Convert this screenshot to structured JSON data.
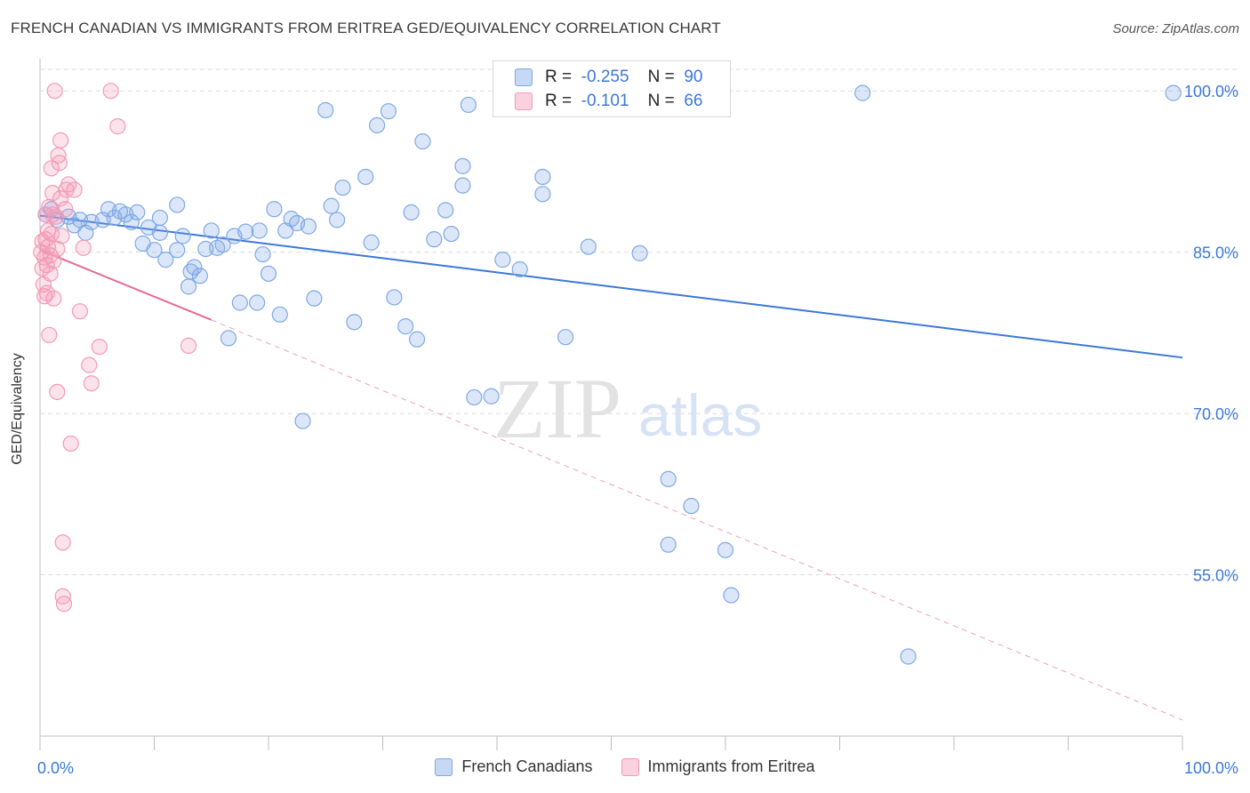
{
  "title": "FRENCH CANADIAN VS IMMIGRANTS FROM ERITREA GED/EQUIVALENCY CORRELATION CHART",
  "source": "Source: ZipAtlas.com",
  "watermark": {
    "zip": "ZIP",
    "atlas": "atlas"
  },
  "legend_top": [
    {
      "r_label": "R =",
      "r_value": "-0.255",
      "n_label": "N =",
      "n_value": "90",
      "color": "#7fa8e6"
    },
    {
      "r_label": "R =",
      "r_value": "-0.101",
      "n_label": "N =",
      "n_value": "66",
      "color": "#f39ab6"
    }
  ],
  "chart_data": {
    "type": "scatter",
    "title": "FRENCH CANADIAN VS IMMIGRANTS FROM ERITREA GED/EQUIVALENCY CORRELATION CHART",
    "xlabel": "",
    "ylabel": "GED/Equivalency",
    "xlim": [
      0,
      100
    ],
    "ylim": [
      40,
      102
    ],
    "x_tick_labels": [
      "0.0%",
      "100.0%"
    ],
    "y_ticks": [
      55,
      70,
      85,
      100
    ],
    "y_tick_labels": [
      "55.0%",
      "70.0%",
      "85.0%",
      "100.0%"
    ],
    "grid": true,
    "legend_placement": "bottom",
    "series": [
      {
        "name": "French Canadians",
        "color": "#7fa8e6",
        "trend": {
          "x": [
            0,
            100
          ],
          "y": [
            88.4,
            75.2
          ],
          "style": "solid"
        },
        "points": [
          [
            0.5,
            88.5
          ],
          [
            1.0,
            89.0
          ],
          [
            1.5,
            88.0
          ],
          [
            2.5,
            88.3
          ],
          [
            3.0,
            87.5
          ],
          [
            3.5,
            88.0
          ],
          [
            4.0,
            86.8
          ],
          [
            4.5,
            87.8
          ],
          [
            5.5,
            88.0
          ],
          [
            6.0,
            89.0
          ],
          [
            6.5,
            88.2
          ],
          [
            7.0,
            88.8
          ],
          [
            7.5,
            88.5
          ],
          [
            8.0,
            87.8
          ],
          [
            8.5,
            88.7
          ],
          [
            9.0,
            85.8
          ],
          [
            9.5,
            87.3
          ],
          [
            10.0,
            85.2
          ],
          [
            10.5,
            88.2
          ],
          [
            10.5,
            86.8
          ],
          [
            11.0,
            84.3
          ],
          [
            12.0,
            85.2
          ],
          [
            12.0,
            89.4
          ],
          [
            12.5,
            86.5
          ],
          [
            13.0,
            81.8
          ],
          [
            13.2,
            83.2
          ],
          [
            13.5,
            83.6
          ],
          [
            14.0,
            82.8
          ],
          [
            14.5,
            85.3
          ],
          [
            15.0,
            87.0
          ],
          [
            15.5,
            85.4
          ],
          [
            16.0,
            85.7
          ],
          [
            16.5,
            77.0
          ],
          [
            17.0,
            86.5
          ],
          [
            17.5,
            80.3
          ],
          [
            18.0,
            86.9
          ],
          [
            19.0,
            80.3
          ],
          [
            19.2,
            87.0
          ],
          [
            19.5,
            84.8
          ],
          [
            20.0,
            83.0
          ],
          [
            20.5,
            89.0
          ],
          [
            21.0,
            79.2
          ],
          [
            21.5,
            87.0
          ],
          [
            22.0,
            88.1
          ],
          [
            22.5,
            87.7
          ],
          [
            23.0,
            69.3
          ],
          [
            23.5,
            87.4
          ],
          [
            24.0,
            80.7
          ],
          [
            25.5,
            89.3
          ],
          [
            26.0,
            88.0
          ],
          [
            25.0,
            98.2
          ],
          [
            26.5,
            91.0
          ],
          [
            27.5,
            78.5
          ],
          [
            28.5,
            92.0
          ],
          [
            29.0,
            85.9
          ],
          [
            29.5,
            96.8
          ],
          [
            30.5,
            98.1
          ],
          [
            31.0,
            80.8
          ],
          [
            32.0,
            78.1
          ],
          [
            32.5,
            88.7
          ],
          [
            33.0,
            76.9
          ],
          [
            33.5,
            95.3
          ],
          [
            34.5,
            86.2
          ],
          [
            35.5,
            88.9
          ],
          [
            36.0,
            86.7
          ],
          [
            37.0,
            93.0
          ],
          [
            37.0,
            91.2
          ],
          [
            37.5,
            98.7
          ],
          [
            38.0,
            71.5
          ],
          [
            39.5,
            71.6
          ],
          [
            40.5,
            84.3
          ],
          [
            42.0,
            83.4
          ],
          [
            44.0,
            90.4
          ],
          [
            44.0,
            92.0
          ],
          [
            46.0,
            77.1
          ],
          [
            48.0,
            85.5
          ],
          [
            52.5,
            84.9
          ],
          [
            55.0,
            63.9
          ],
          [
            55.0,
            57.8
          ],
          [
            57.0,
            61.4
          ],
          [
            60.0,
            57.3
          ],
          [
            60.5,
            53.1
          ],
          [
            72.0,
            99.8
          ],
          [
            76.0,
            47.4
          ],
          [
            99.2,
            99.8
          ]
        ]
      },
      {
        "name": "Immigrants from Eritrea",
        "color": "#f39ab6",
        "trend": {
          "x": [
            0,
            15,
            100
          ],
          "y": [
            85.2,
            78.7,
            41.5
          ],
          "style": "solid-then-dashed"
        },
        "points": [
          [
            0.1,
            85.0
          ],
          [
            0.2,
            83.5
          ],
          [
            0.2,
            86.0
          ],
          [
            0.3,
            82.0
          ],
          [
            0.4,
            84.5
          ],
          [
            0.4,
            80.9
          ],
          [
            0.5,
            88.5
          ],
          [
            0.5,
            86.2
          ],
          [
            0.6,
            83.8
          ],
          [
            0.6,
            81.2
          ],
          [
            0.7,
            85.5
          ],
          [
            0.7,
            87.0
          ],
          [
            0.8,
            77.3
          ],
          [
            0.8,
            89.2
          ],
          [
            0.9,
            83.0
          ],
          [
            0.9,
            84.7
          ],
          [
            1.0,
            92.8
          ],
          [
            1.0,
            86.7
          ],
          [
            1.1,
            90.5
          ],
          [
            1.1,
            88.5
          ],
          [
            1.2,
            84.2
          ],
          [
            1.2,
            80.7
          ],
          [
            1.3,
            100.0
          ],
          [
            1.4,
            88.3
          ],
          [
            1.5,
            72.0
          ],
          [
            1.5,
            85.3
          ],
          [
            1.6,
            94.0
          ],
          [
            1.7,
            93.3
          ],
          [
            1.8,
            95.4
          ],
          [
            1.8,
            90.0
          ],
          [
            1.9,
            86.5
          ],
          [
            2.0,
            58.0
          ],
          [
            2.0,
            53.0
          ],
          [
            2.1,
            52.3
          ],
          [
            2.2,
            89.0
          ],
          [
            2.3,
            90.8
          ],
          [
            2.5,
            91.3
          ],
          [
            2.7,
            67.2
          ],
          [
            3.0,
            90.8
          ],
          [
            3.5,
            79.5
          ],
          [
            3.8,
            85.4
          ],
          [
            4.3,
            74.5
          ],
          [
            4.5,
            72.8
          ],
          [
            5.2,
            76.2
          ],
          [
            6.2,
            100.0
          ],
          [
            6.8,
            96.7
          ],
          [
            13.0,
            76.3
          ]
        ]
      }
    ]
  },
  "legend_bottom": [
    {
      "label": "French Canadians",
      "color": "#7fa8e6"
    },
    {
      "label": "Immigrants from Eritrea",
      "color": "#f39ab6"
    }
  ]
}
